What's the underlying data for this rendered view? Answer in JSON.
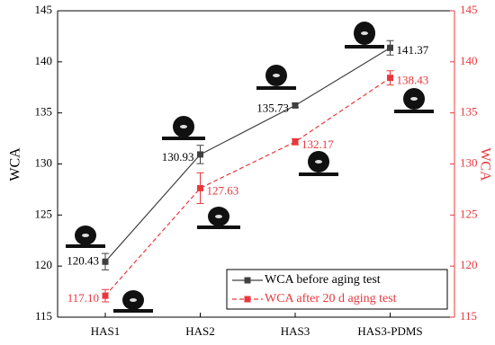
{
  "chart_data": {
    "type": "line",
    "categories": [
      "HAS1",
      "HAS2",
      "HAS3",
      "HAS3-PDMS"
    ],
    "y_label": "WCA",
    "y2_label": "WCA",
    "ylim": [
      115,
      145
    ],
    "yticks": [
      115,
      120,
      125,
      130,
      135,
      140,
      145
    ],
    "y2lim": [
      115,
      145
    ],
    "y2ticks": [
      115,
      120,
      125,
      130,
      135,
      140,
      145
    ],
    "legend": "lower right",
    "series": [
      {
        "name": "WCA before aging test",
        "color": "#404040",
        "line_style": "solid",
        "values": [
          120.43,
          130.93,
          135.73,
          141.37
        ],
        "value_labels": [
          "120.43",
          "130.93",
          "135.73",
          "141.37"
        ],
        "errors": [
          0.8,
          0.9,
          0.2,
          0.7
        ]
      },
      {
        "name": "WCA after 20 d aging test",
        "color": "#e8383d",
        "axis": "y2",
        "line_style": "dashed",
        "values": [
          117.1,
          127.63,
          132.17,
          138.43
        ],
        "value_labels": [
          "117.10",
          "127.63",
          "132.17",
          "138.43"
        ],
        "errors": [
          0.6,
          1.5,
          0.3,
          0.7
        ]
      }
    ]
  }
}
